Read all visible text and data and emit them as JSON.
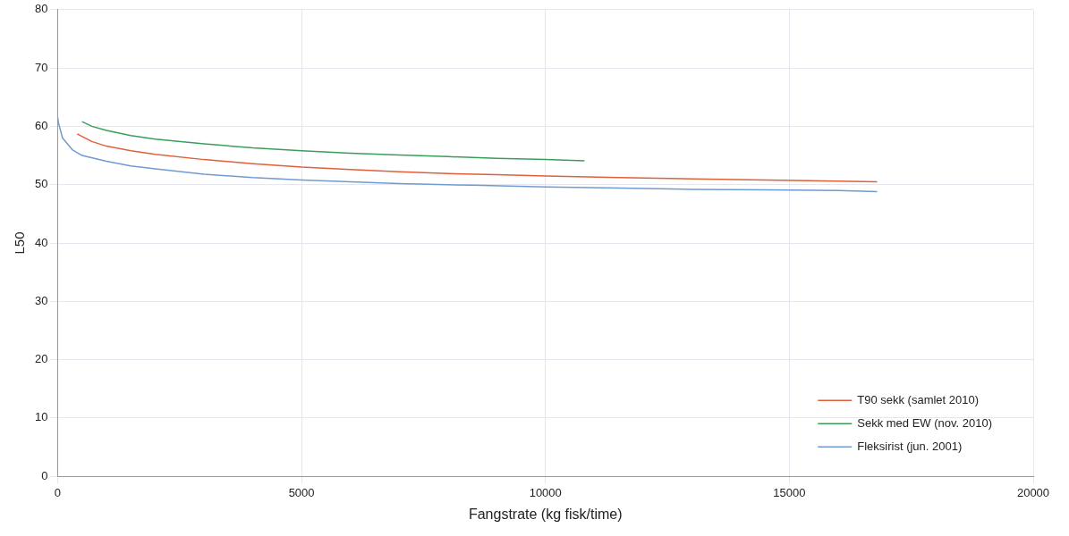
{
  "chart_data": {
    "type": "line",
    "xlabel": "Fangstrate (kg fisk/time)",
    "ylabel": "L50",
    "xlim": [
      0,
      20000
    ],
    "xticks": [
      0,
      5000,
      10000,
      15000,
      20000
    ],
    "ylim": [
      0,
      80
    ],
    "yticks": [
      0,
      10,
      20,
      30,
      40,
      50,
      60,
      70,
      80
    ],
    "grid": true,
    "legend": "bottom right",
    "marker": "none",
    "series": [
      {
        "name": "T90 sekk (samlet 2010)",
        "color": "#e0603a",
        "x": [
          400,
          700,
          1000,
          1500,
          2000,
          3000,
          4000,
          5000,
          6000,
          7000,
          8000,
          9000,
          10000,
          11500,
          13000,
          14500,
          16000,
          16800
        ],
        "values": [
          58.7,
          57.4,
          56.6,
          55.8,
          55.2,
          54.3,
          53.6,
          53.0,
          52.6,
          52.2,
          51.9,
          51.7,
          51.5,
          51.2,
          51.0,
          50.8,
          50.6,
          50.5
        ]
      },
      {
        "name": "Sekk med EW (nov. 2010)",
        "color": "#3a9e5a",
        "x": [
          500,
          700,
          1000,
          1500,
          2000,
          3000,
          4000,
          5000,
          6000,
          7000,
          8000,
          9000,
          10000,
          10800
        ],
        "values": [
          60.8,
          60.0,
          59.3,
          58.4,
          57.8,
          57.0,
          56.3,
          55.8,
          55.4,
          55.1,
          54.8,
          54.5,
          54.3,
          54.1
        ]
      },
      {
        "name": "Fleksirist (jun. 2001)",
        "color": "#6f9bd1",
        "x": [
          0,
          20,
          100,
          300,
          500,
          1000,
          1500,
          2000,
          3000,
          4000,
          5000,
          6000,
          7000,
          8500,
          10000,
          11500,
          13000,
          14500,
          16000,
          16800
        ],
        "values": [
          61.5,
          60.5,
          58.0,
          56.0,
          55.0,
          54.0,
          53.2,
          52.7,
          51.8,
          51.2,
          50.8,
          50.5,
          50.2,
          49.9,
          49.6,
          49.4,
          49.2,
          49.1,
          49.0,
          48.8
        ]
      }
    ]
  }
}
